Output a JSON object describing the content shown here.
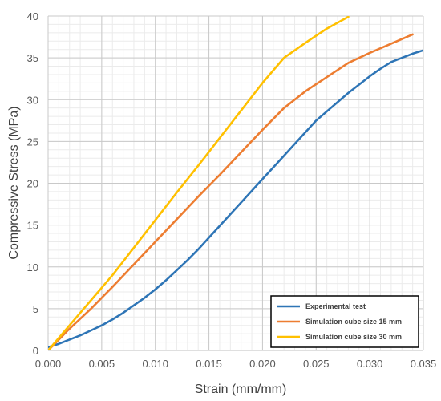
{
  "chart_data": {
    "type": "line",
    "xlabel": "Strain (mm/mm)",
    "ylabel": "Compressive Stress (MPa)",
    "xlim": [
      0,
      0.035
    ],
    "ylim": [
      0,
      40
    ],
    "xticks": [
      "0.000",
      "0.005",
      "0.010",
      "0.015",
      "0.020",
      "0.025",
      "0.030",
      "0.035"
    ],
    "yticks": [
      "0",
      "5",
      "10",
      "15",
      "20",
      "25",
      "30",
      "35",
      "40"
    ],
    "grid": true,
    "legend_position": "bottom-right",
    "series": [
      {
        "name": "Experimental test",
        "color": "#2E75B6",
        "x": [
          0.0,
          0.001,
          0.002,
          0.003,
          0.004,
          0.005,
          0.006,
          0.007,
          0.008,
          0.009,
          0.01,
          0.011,
          0.012,
          0.013,
          0.014,
          0.015,
          0.016,
          0.017,
          0.018,
          0.019,
          0.02,
          0.021,
          0.022,
          0.023,
          0.024,
          0.025,
          0.026,
          0.027,
          0.028,
          0.029,
          0.03,
          0.031,
          0.032,
          0.033,
          0.034,
          0.035
        ],
        "y": [
          0.4,
          0.8,
          1.3,
          1.8,
          2.4,
          3.0,
          3.7,
          4.5,
          5.4,
          6.3,
          7.3,
          8.4,
          9.6,
          10.8,
          12.1,
          13.5,
          14.9,
          16.3,
          17.7,
          19.1,
          20.5,
          21.9,
          23.3,
          24.7,
          26.1,
          27.5,
          28.6,
          29.7,
          30.8,
          31.8,
          32.8,
          33.7,
          34.5,
          35.0,
          35.5,
          35.9
        ]
      },
      {
        "name": "Simulation cube size 15 mm",
        "color": "#ED7D31",
        "x": [
          0.0,
          0.002,
          0.004,
          0.006,
          0.008,
          0.01,
          0.012,
          0.014,
          0.016,
          0.018,
          0.02,
          0.022,
          0.024,
          0.026,
          0.028,
          0.03,
          0.032,
          0.034
        ],
        "y": [
          0.0,
          2.6,
          5.0,
          7.6,
          10.3,
          13.0,
          15.7,
          18.4,
          21.0,
          23.7,
          26.4,
          29.0,
          31.0,
          32.7,
          34.4,
          35.6,
          36.7,
          37.8
        ]
      },
      {
        "name": "Simulation cube size 30 mm",
        "color": "#FFC000",
        "x": [
          0.0,
          0.002,
          0.004,
          0.006,
          0.008,
          0.01,
          0.012,
          0.014,
          0.016,
          0.018,
          0.02,
          0.022,
          0.024,
          0.026,
          0.028
        ],
        "y": [
          0.0,
          3.0,
          6.0,
          9.0,
          12.3,
          15.6,
          18.9,
          22.1,
          25.4,
          28.7,
          32.0,
          35.0,
          36.8,
          38.5,
          39.9
        ]
      }
    ]
  }
}
